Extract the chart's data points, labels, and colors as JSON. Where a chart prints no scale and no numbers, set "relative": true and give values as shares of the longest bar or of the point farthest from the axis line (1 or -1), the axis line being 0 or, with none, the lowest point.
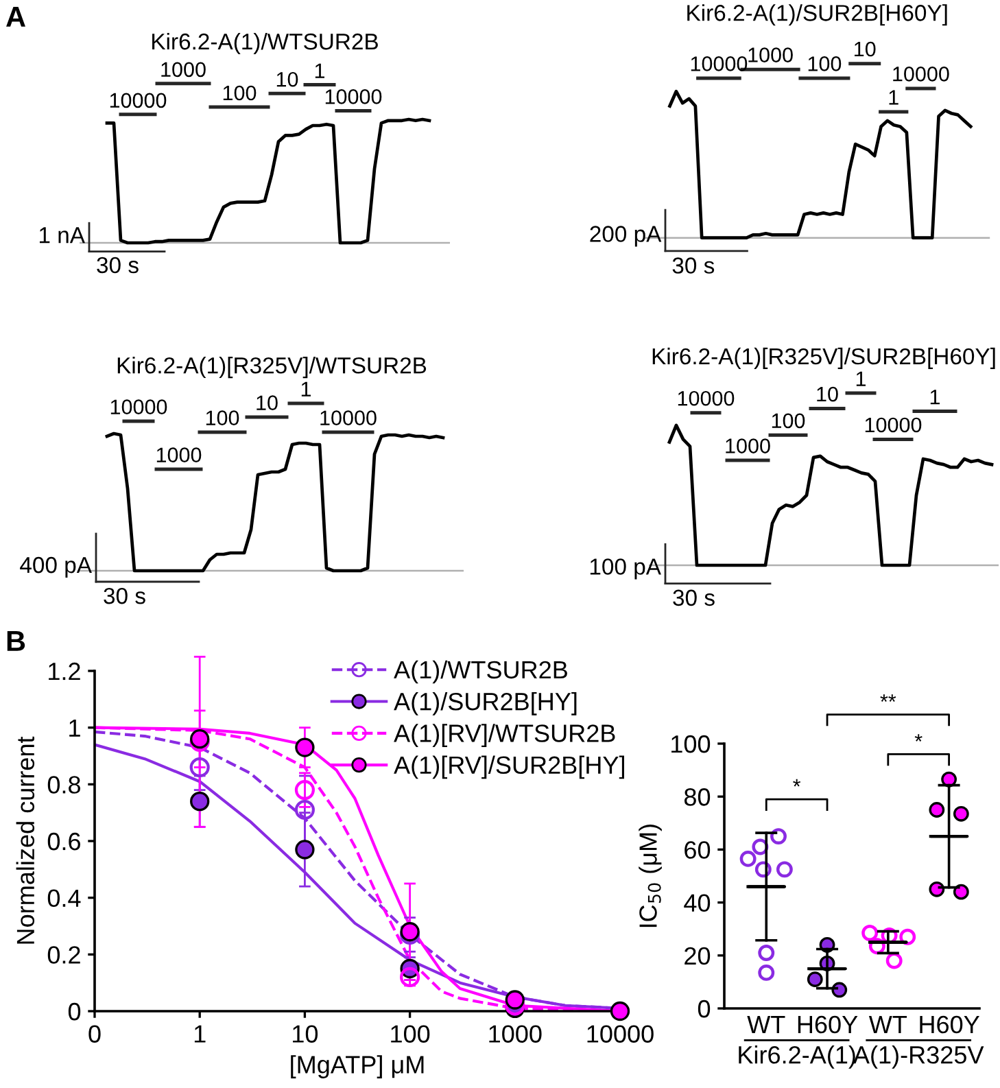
{
  "chart_data": [
    {
      "type": "line",
      "relative": true,
      "title": "Kir6.2-A(1)/WTSUR2B",
      "grid": false,
      "legend": false,
      "categories": [
        null,
        null,
        null,
        null,
        null,
        null,
        null,
        null,
        null,
        null,
        null,
        null,
        null,
        null,
        null,
        null,
        null,
        null,
        null,
        null,
        null,
        null,
        null,
        null,
        null,
        null,
        null,
        null,
        null,
        null,
        null,
        null,
        null,
        null,
        null,
        null,
        null,
        null,
        null,
        null,
        null,
        null,
        null,
        null,
        null,
        null,
        null,
        null
      ],
      "series": [
        {
          "color": "#000000",
          "values": [
            0.97,
            0.97,
            0.02,
            0,
            0,
            0,
            0,
            0.01,
            0.01,
            0.02,
            0.02,
            0.02,
            0.02,
            0.02,
            0.02,
            0.03,
            0.17,
            0.29,
            0.32,
            0.33,
            0.33,
            0.33,
            0.33,
            0.34,
            0.55,
            0.82,
            0.87,
            0.87,
            0.88,
            0.92,
            0.95,
            0.95,
            0.96,
            0.95,
            0,
            0,
            0,
            0,
            0.02,
            0.6,
            0.97,
            0.99,
            0.99,
            0.99,
            1,
            0.99,
            1,
            0.99
          ]
        }
      ],
      "ref_lines": [
        {
          "axis": "y",
          "value": 0,
          "color": "#b0b0b0"
        }
      ],
      "annotations": [
        "A",
        "10000",
        "1000",
        "100",
        "10",
        "1",
        "10000",
        "1 nA",
        "30 s"
      ]
    },
    {
      "type": "line",
      "relative": true,
      "title": "Kir6.2-A(1)/SUR2B[H60Y]",
      "grid": false,
      "legend": false,
      "categories": [
        null,
        null,
        null,
        null,
        null,
        null,
        null,
        null,
        null,
        null,
        null,
        null,
        null,
        null,
        null,
        null,
        null,
        null,
        null,
        null,
        null,
        null,
        null,
        null,
        null,
        null,
        null,
        null,
        null,
        null,
        null,
        null,
        null,
        null,
        null,
        null,
        null,
        null,
        null,
        null,
        null,
        null,
        null,
        null,
        null,
        null,
        null,
        null
      ],
      "series": [
        {
          "color": "#000000",
          "values": [
            0.9,
            1,
            0.92,
            0.95,
            0.9,
            0,
            0,
            0,
            0,
            0,
            0,
            0,
            0,
            0.02,
            0.02,
            0.03,
            0.02,
            0.02,
            0.02,
            0.02,
            0.02,
            0.16,
            0.17,
            0.16,
            0.17,
            0.16,
            0.17,
            0.16,
            0.45,
            0.64,
            0.62,
            0.6,
            0.56,
            0.76,
            0.8,
            0.77,
            0.76,
            0.72,
            0,
            0,
            0,
            0,
            0.83,
            0.87,
            0.85,
            0.84,
            0.8,
            0.76
          ]
        }
      ],
      "ref_lines": [
        {
          "axis": "y",
          "value": 0,
          "color": "#b0b0b0"
        }
      ],
      "annotations": [
        "10000",
        "1000",
        "100",
        "10",
        "1",
        "10000",
        "200 pA",
        "30 s"
      ]
    },
    {
      "type": "line",
      "relative": true,
      "title": "Kir6.2-A(1)[R325V]/WTSUR2B",
      "grid": false,
      "legend": false,
      "categories": [
        null,
        null,
        null,
        null,
        null,
        null,
        null,
        null,
        null,
        null,
        null,
        null,
        null,
        null,
        null,
        null,
        null,
        null,
        null,
        null,
        null,
        null,
        null,
        null,
        null,
        null,
        null,
        null,
        null,
        null,
        null,
        null,
        null,
        null,
        null,
        null,
        null,
        null,
        null,
        null,
        null,
        null,
        null,
        null,
        null,
        null,
        null,
        null,
        null,
        null
      ],
      "series": [
        {
          "color": "#000000",
          "values": [
            0.98,
            1,
            0.99,
            0.6,
            0,
            0,
            0,
            0,
            0,
            0,
            0,
            0,
            0,
            0,
            0,
            0.08,
            0.12,
            0.12,
            0.13,
            0.13,
            0.13,
            0.3,
            0.7,
            0.71,
            0.72,
            0.72,
            0.74,
            0.92,
            0.93,
            0.93,
            0.92,
            0.92,
            0.02,
            0,
            0,
            0,
            0,
            0,
            0.02,
            0.85,
            0.98,
            0.99,
            0.99,
            0.98,
            0.99,
            0.98,
            0.98,
            0.97,
            0.98,
            0.97
          ]
        }
      ],
      "ref_lines": [
        {
          "axis": "y",
          "value": 0,
          "color": "#b0b0b0"
        }
      ],
      "annotations": [
        "10000",
        "1000",
        "100",
        "10",
        "1",
        "10000",
        "400 pA",
        "30 s"
      ]
    },
    {
      "type": "line",
      "relative": true,
      "title": "Kir6.2-A(1)[R325V]/SUR2B[H60Y]",
      "grid": false,
      "legend": false,
      "categories": [
        null,
        null,
        null,
        null,
        null,
        null,
        null,
        null,
        null,
        null,
        null,
        null,
        null,
        null,
        null,
        null,
        null,
        null,
        null,
        null,
        null,
        null,
        null,
        null,
        null,
        null,
        null,
        null,
        null,
        null,
        null,
        null,
        null,
        null,
        null,
        null,
        null,
        null,
        null,
        null,
        null,
        null,
        null,
        null,
        null,
        null,
        null,
        null
      ],
      "series": [
        {
          "color": "#000000",
          "values": [
            0.88,
            1,
            0.9,
            0.85,
            0,
            0,
            0,
            0,
            0,
            0,
            0,
            0,
            0,
            0,
            0,
            0.3,
            0.4,
            0.43,
            0.42,
            0.45,
            0.5,
            0.77,
            0.78,
            0.74,
            0.72,
            0.7,
            0.7,
            0.68,
            0.66,
            0.65,
            0.6,
            0,
            0,
            0,
            0,
            0,
            0.5,
            0.76,
            0.75,
            0.73,
            0.72,
            0.7,
            0.7,
            0.76,
            0.74,
            0.75,
            0.73,
            0.72
          ]
        }
      ],
      "ref_lines": [
        {
          "axis": "y",
          "value": 0,
          "color": "#b0b0b0"
        }
      ],
      "annotations": [
        "10000",
        "1000",
        "100",
        "10",
        "1",
        "10000",
        "1",
        "100 pA",
        "30 s"
      ]
    },
    {
      "type": "scatter",
      "xlabel": "[MgATP] μM",
      "ylabel": "Normalized current",
      "log": "x",
      "grid": false,
      "legend": "top right",
      "marker": "circle",
      "x": [
        1,
        10,
        100,
        1000,
        10000
      ],
      "xlim": [
        0.1,
        10000
      ],
      "xticks": [
        {
          "value": 0.1,
          "label": "0"
        },
        1,
        10,
        100,
        1000,
        10000
      ],
      "ylim": [
        0,
        1.2
      ],
      "yticks": [
        0,
        0.2,
        0.4,
        0.6,
        0.8,
        {
          "value": 1,
          "label": "1"
        },
        1.2
      ],
      "series": [
        {
          "type": "line",
          "marker": "none",
          "color": "#8a2be2",
          "line_style": "dashed",
          "x": [
            0.1,
            0.3,
            1,
            3,
            10,
            30,
            100,
            300,
            1000,
            3000,
            10000
          ],
          "values": [
            0.985,
            0.97,
            0.93,
            0.84,
            0.68,
            0.46,
            0.27,
            0.13,
            0.05,
            0.02,
            0.01
          ]
        },
        {
          "type": "line",
          "marker": "none",
          "color": "#8a2be2",
          "line_style": "solid",
          "x": [
            0.1,
            0.3,
            1,
            3,
            10,
            30,
            100,
            300,
            1000,
            3000,
            10000
          ],
          "values": [
            0.94,
            0.89,
            0.81,
            0.67,
            0.49,
            0.31,
            0.18,
            0.1,
            0.05,
            0.02,
            0.01
          ]
        },
        {
          "type": "line",
          "marker": "none",
          "color": "#ff00ff",
          "line_style": "dashed",
          "x": [
            0.1,
            1,
            3,
            10,
            20,
            30,
            50,
            100,
            200,
            300,
            1000,
            10000
          ],
          "values": [
            1,
            0.99,
            0.96,
            0.86,
            0.7,
            0.58,
            0.4,
            0.18,
            0.07,
            0.045,
            0.01,
            0
          ]
        },
        {
          "type": "line",
          "marker": "none",
          "color": "#ff00ff",
          "line_style": "solid",
          "x": [
            0.1,
            1,
            3,
            10,
            20,
            30,
            50,
            100,
            200,
            300,
            1000,
            10000
          ],
          "values": [
            1,
            0.995,
            0.98,
            0.94,
            0.85,
            0.75,
            0.55,
            0.3,
            0.14,
            0.08,
            0.02,
            0
          ]
        },
        {
          "type": "scatter",
          "name": "A(1)/WTSUR2B",
          "color": "#8a2be2",
          "line_style": "dashed",
          "values": [
            0.86,
            0.71,
            0.27,
            null,
            null
          ],
          "errors": [
            0.08,
            0.12,
            0.06,
            null,
            null
          ]
        },
        {
          "type": "scatter",
          "name": "A(1)/SUR2B[HY]",
          "color": "#8a2be2",
          "line_style": "solid",
          "values": [
            0.74,
            0.57,
            0.15,
            0.01,
            null
          ],
          "errors": [
            0.09,
            0.13,
            0.04,
            null,
            null
          ]
        },
        {
          "type": "scatter",
          "name": "A(1)[RV]/WTSUR2B",
          "color": "#ff00ff",
          "line_style": "dashed",
          "values": [
            0.95,
            0.78,
            0.12,
            0.02,
            null
          ],
          "errors": [
            0.3,
            0.06,
            0.03,
            null,
            null
          ]
        },
        {
          "type": "scatter",
          "name": "A(1)[RV]/SUR2B[HY]",
          "color": "#ff00ff",
          "line_style": "solid",
          "values": [
            0.96,
            0.93,
            0.28,
            0.04,
            0
          ],
          "errors": [
            0.1,
            0.07,
            0.17,
            null,
            null
          ]
        }
      ],
      "annotations": [
        "B"
      ]
    },
    {
      "type": "scatter",
      "ylabel": "IC$_{50}$ (μM)",
      "grid": false,
      "categories": [
        "WT",
        "H60Y",
        "WT",
        "H60Y"
      ],
      "ylim": [
        0,
        100
      ],
      "yticks": [
        0,
        20,
        40,
        60,
        80,
        100
      ],
      "series": [
        {
          "marker": "circle",
          "colors": [
            "#8a2be2",
            "#8a2be2",
            "#ff00ff",
            "#ff00ff"
          ],
          "values": [
            65,
            24,
            28.5,
            86.5
          ]
        },
        {
          "marker": "circle",
          "colors": [
            "#8a2be2",
            "#8a2be2",
            "#ff00ff",
            "#ff00ff"
          ],
          "values": [
            61,
            17,
            27.5,
            75
          ]
        },
        {
          "marker": "circle",
          "colors": [
            "#8a2be2",
            "#8a2be2",
            "#ff00ff",
            "#ff00ff"
          ],
          "values": [
            56.5,
            11,
            27,
            73.5
          ]
        },
        {
          "marker": "circle",
          "colors": [
            "#8a2be2",
            "#8a2be2",
            "#ff00ff",
            "#ff00ff"
          ],
          "values": [
            52.5,
            7,
            23.5,
            45
          ]
        },
        {
          "marker": "circle",
          "colors": [
            "#8a2be2",
            "#8a2be2",
            "#ff00ff",
            "#ff00ff"
          ],
          "values": [
            52.5,
            null,
            18,
            44
          ]
        },
        {
          "marker": "circle",
          "colors": [
            "#8a2be2",
            "#8a2be2",
            "#ff00ff",
            "#ff00ff"
          ],
          "values": [
            21,
            null,
            null,
            null
          ]
        },
        {
          "marker": "circle",
          "colors": [
            "#8a2be2",
            "#8a2be2",
            "#ff00ff",
            "#ff00ff"
          ],
          "values": [
            13.5,
            null,
            null,
            null
          ]
        },
        {
          "type": "box",
          "color": "#000000",
          "boxes": [
            {
              "low": 25.7,
              "q1": 46,
              "median": 46,
              "q3": 46,
              "high": 66.3
            },
            {
              "low": 7.6,
              "q1": 15,
              "median": 15,
              "q3": 15,
              "high": 22.4
            },
            {
              "low": 20.9,
              "q1": 25,
              "median": 25,
              "q3": 25,
              "high": 29.1
            },
            {
              "low": 45.7,
              "q1": 65,
              "median": 65,
              "q3": 65,
              "high": 84.3
            }
          ]
        }
      ],
      "annotations": [
        "**",
        "*",
        "*",
        "Kir6.2-A(1)",
        "A(1)-R325V"
      ]
    }
  ]
}
